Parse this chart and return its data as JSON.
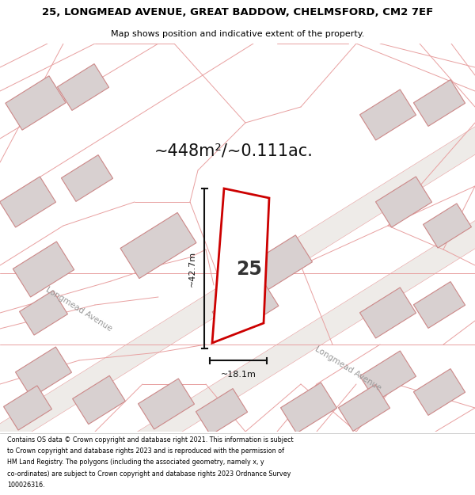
{
  "title_line1": "25, LONGMEAD AVENUE, GREAT BADDOW, CHELMSFORD, CM2 7EF",
  "title_line2": "Map shows position and indicative extent of the property.",
  "area_text": "~448m²/~0.111ac.",
  "label_25": "25",
  "dim_vertical": "~42.7m",
  "dim_horizontal": "~18.1m",
  "road_label1": "Longmead Avenue",
  "road_label2": "Longmead Avenue",
  "footer_lines": [
    "Contains OS data © Crown copyright and database right 2021. This information is subject",
    "to Crown copyright and database rights 2023 and is reproduced with the permission of",
    "HM Land Registry. The polygons (including the associated geometry, namely x, y",
    "co-ordinates) are subject to Crown copyright and database rights 2023 Ordnance Survey",
    "100026316."
  ],
  "map_bg": "#f7f2f2",
  "building_fc": "#d8d0d0",
  "building_ec": "#cc8888",
  "road_stripe_fc": "#eeeeee",
  "line_color": "#e8a0a0",
  "property_ec": "#cc0000",
  "property_fc": "#ffffff",
  "measure_color": "#111111",
  "road_label_color": "#999999",
  "title_fs1": 9.5,
  "title_fs2": 8.0,
  "area_fs": 15,
  "label_fs": 17,
  "dim_fs": 8.0,
  "road_label_fs": 7.5,
  "footer_fs": 5.8
}
